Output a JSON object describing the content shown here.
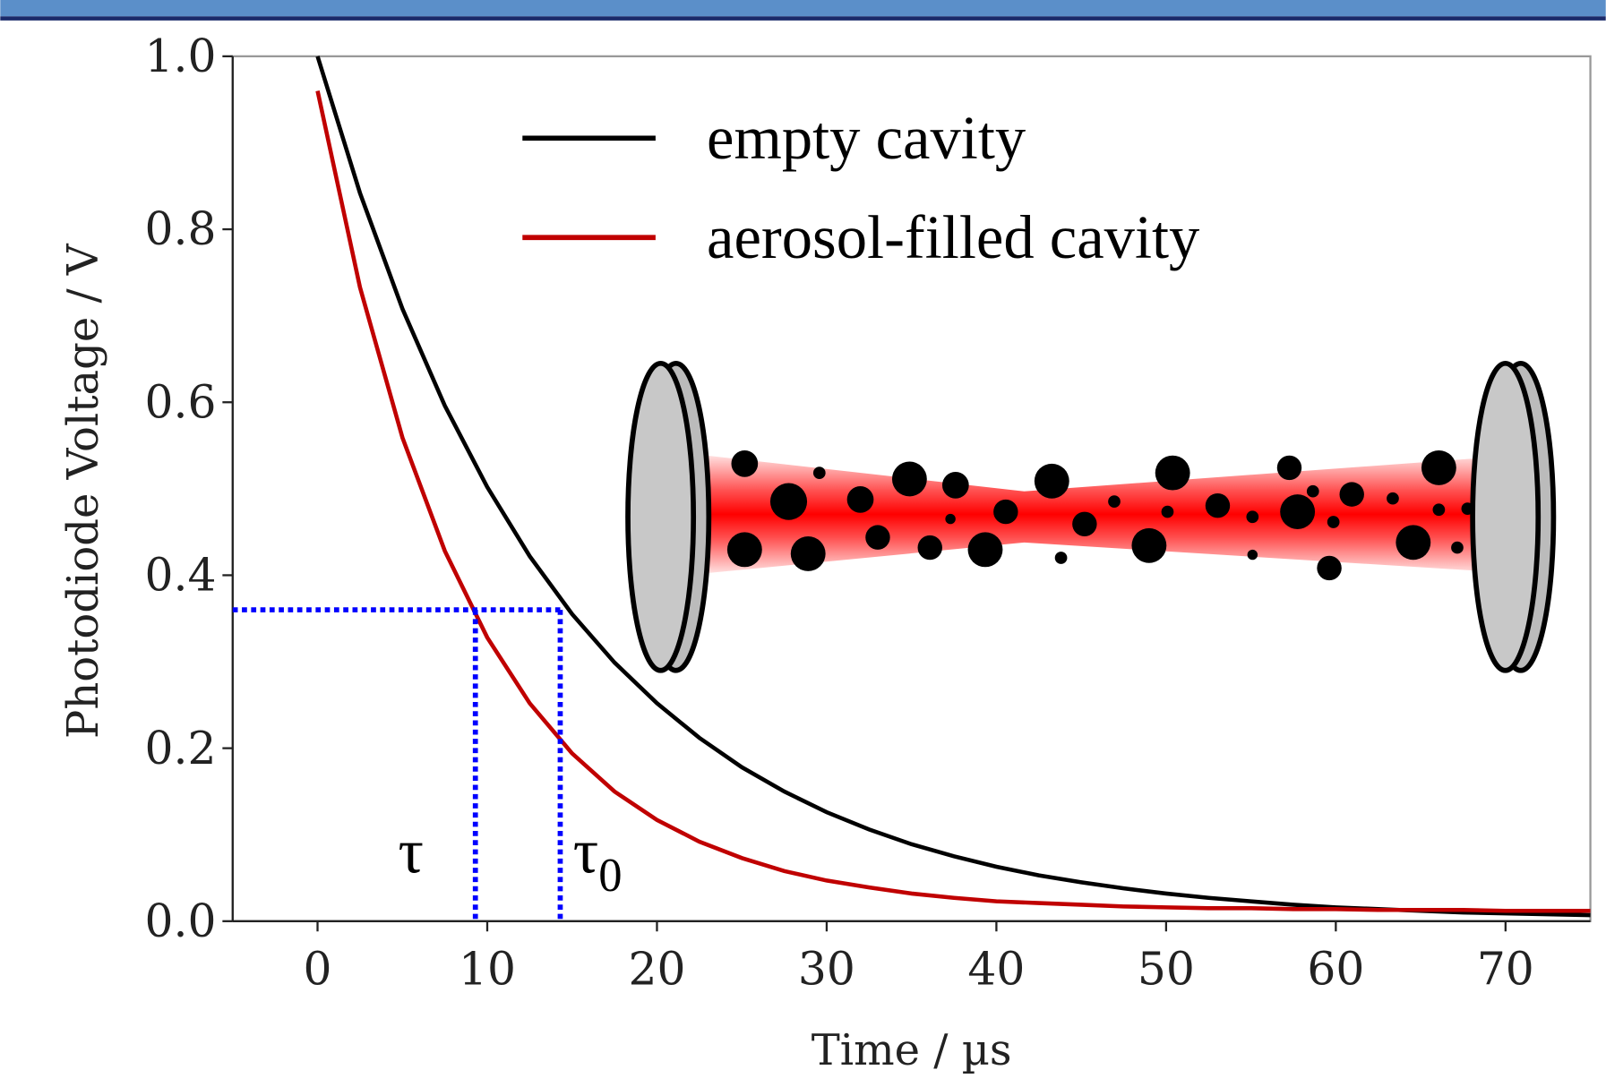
{
  "chart_data": {
    "type": "line",
    "x_label": "Time / µs",
    "y_label": "Photodiode Voltage / V",
    "x": [
      0,
      2.5,
      5,
      7.5,
      10,
      12.5,
      15,
      17.5,
      20,
      22.5,
      25,
      27.5,
      30,
      32.5,
      35,
      37.5,
      40,
      42.5,
      45,
      47.5,
      50,
      52.5,
      55,
      57.5,
      60,
      62.5,
      65,
      67.5,
      70,
      72.5,
      75
    ],
    "series": [
      {
        "name": "empty cavity",
        "color": "#000000",
        "values": [
          1.0,
          0.842,
          0.708,
          0.596,
          0.502,
          0.422,
          0.355,
          0.299,
          0.252,
          0.212,
          0.178,
          0.15,
          0.126,
          0.106,
          0.089,
          0.075,
          0.063,
          0.053,
          0.045,
          0.038,
          0.032,
          0.027,
          0.023,
          0.019,
          0.016,
          0.014,
          0.012,
          0.01,
          0.009,
          0.008,
          0.007
        ]
      },
      {
        "name": "aerosol-filled cavity",
        "color": "#c00000",
        "values": [
          0.96,
          0.733,
          0.559,
          0.428,
          0.328,
          0.252,
          0.194,
          0.15,
          0.117,
          0.092,
          0.073,
          0.058,
          0.047,
          0.039,
          0.032,
          0.027,
          0.023,
          0.021,
          0.019,
          0.017,
          0.016,
          0.015,
          0.015,
          0.014,
          0.014,
          0.013,
          0.013,
          0.013,
          0.012,
          0.012,
          0.012
        ]
      }
    ],
    "xlim": [
      -5,
      75
    ],
    "ylim": [
      0,
      1
    ],
    "xticks": [
      0,
      10,
      20,
      30,
      40,
      50,
      60,
      70
    ],
    "yticks": [
      {
        "value": 0,
        "label": "0.0"
      },
      {
        "value": 0.2,
        "label": "0.2"
      },
      {
        "value": 0.4,
        "label": "0.4"
      },
      {
        "value": 0.6,
        "label": "0.6"
      },
      {
        "value": 0.8,
        "label": "0.8"
      },
      {
        "value": 1,
        "label": "1.0"
      }
    ],
    "guides": {
      "y": 0.36,
      "x": [
        9.3,
        14.3
      ],
      "color": "#0000ff"
    },
    "annotations": [
      {
        "text": "τ",
        "x": 5.5,
        "y": 0.08
      },
      {
        "text": "τ",
        "sub": "0",
        "x": 16.5,
        "y": 0.08
      }
    ]
  }
}
